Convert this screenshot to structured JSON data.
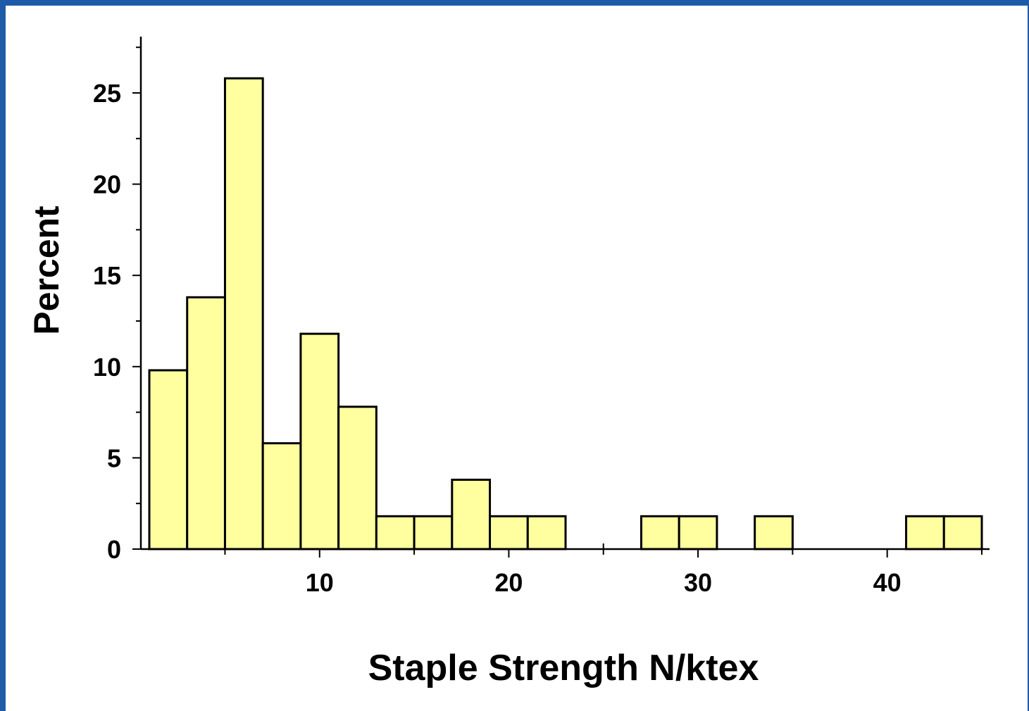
{
  "chart_data": {
    "type": "bar",
    "xlabel": "Staple Strength N/ktex",
    "ylabel": "Percent",
    "xlim": [
      0.5,
      45.5
    ],
    "ylim": [
      0,
      28
    ],
    "bin_width": 2,
    "bins": [
      {
        "x0": 1,
        "x1": 3,
        "value": 9.8
      },
      {
        "x0": 3,
        "x1": 5,
        "value": 13.8
      },
      {
        "x0": 5,
        "x1": 7,
        "value": 25.8
      },
      {
        "x0": 7,
        "x1": 9,
        "value": 5.8
      },
      {
        "x0": 9,
        "x1": 11,
        "value": 11.8
      },
      {
        "x0": 11,
        "x1": 13,
        "value": 7.8
      },
      {
        "x0": 13,
        "x1": 15,
        "value": 1.8
      },
      {
        "x0": 15,
        "x1": 17,
        "value": 1.8
      },
      {
        "x0": 17,
        "x1": 19,
        "value": 3.8
      },
      {
        "x0": 19,
        "x1": 21,
        "value": 1.8
      },
      {
        "x0": 21,
        "x1": 23,
        "value": 1.8
      },
      {
        "x0": 27,
        "x1": 29,
        "value": 1.8
      },
      {
        "x0": 29,
        "x1": 31,
        "value": 1.8
      },
      {
        "x0": 33,
        "x1": 35,
        "value": 1.8
      },
      {
        "x0": 41,
        "x1": 43,
        "value": 1.8
      },
      {
        "x0": 43,
        "x1": 45,
        "value": 1.8
      }
    ],
    "x_major_ticks": [
      10,
      20,
      30,
      40
    ],
    "x_tick_labels": [
      "10",
      "20",
      "30",
      "40"
    ],
    "x_minor_ticks": [
      5,
      15,
      25,
      35,
      45
    ],
    "y_major_ticks": [
      0,
      5,
      10,
      15,
      20,
      25
    ],
    "y_tick_labels": [
      "0",
      "5",
      "10",
      "15",
      "20",
      "25"
    ],
    "y_minor_step": 2.5,
    "bar_color": "#ffffa0",
    "background": "#ffffff",
    "frame_color": "#1e5aa8",
    "grid": false,
    "legend": "none"
  }
}
